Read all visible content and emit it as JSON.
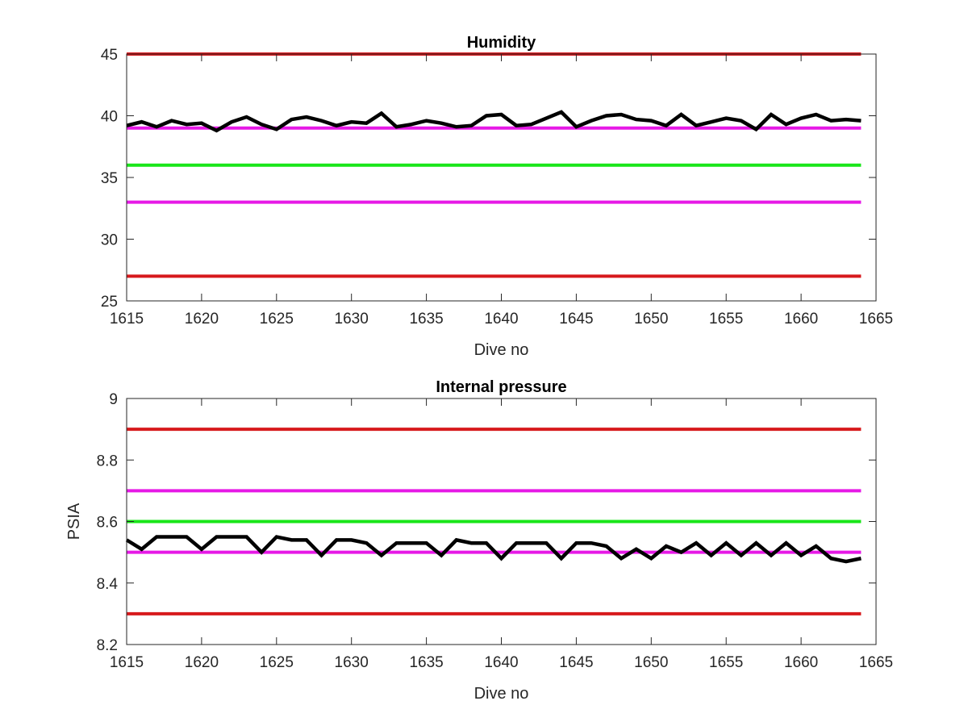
{
  "chart_data": [
    {
      "type": "line",
      "title": "Humidity",
      "xlabel": "Dive no",
      "ylabel": "",
      "xlim": [
        1615,
        1665
      ],
      "ylim": [
        25,
        45
      ],
      "xticks": [
        1615,
        1620,
        1625,
        1630,
        1635,
        1640,
        1645,
        1650,
        1655,
        1660,
        1665
      ],
      "yticks": [
        25,
        30,
        35,
        40,
        45
      ],
      "grid": false,
      "reference_lines": [
        {
          "y": 45,
          "color": "#d7191c"
        },
        {
          "y": 39,
          "color": "#e619e6"
        },
        {
          "y": 36,
          "color": "#19e619"
        },
        {
          "y": 33,
          "color": "#e619e6"
        },
        {
          "y": 27,
          "color": "#d7191c"
        }
      ],
      "series": [
        {
          "color": "#000000",
          "x": [
            1615,
            1616,
            1617,
            1618,
            1619,
            1620,
            1621,
            1622,
            1623,
            1624,
            1625,
            1626,
            1627,
            1628,
            1629,
            1630,
            1631,
            1632,
            1633,
            1634,
            1635,
            1636,
            1637,
            1638,
            1639,
            1640,
            1641,
            1642,
            1643,
            1644,
            1645,
            1646,
            1647,
            1648,
            1649,
            1650,
            1651,
            1652,
            1653,
            1654,
            1655,
            1656,
            1657,
            1658,
            1659,
            1660,
            1661,
            1662,
            1663,
            1664
          ],
          "y": [
            39.2,
            39.5,
            39.1,
            39.6,
            39.3,
            39.4,
            38.8,
            39.5,
            39.9,
            39.3,
            38.9,
            39.7,
            39.9,
            39.6,
            39.2,
            39.5,
            39.4,
            40.2,
            39.1,
            39.3,
            39.6,
            39.4,
            39.1,
            39.2,
            40.0,
            40.1,
            39.2,
            39.3,
            39.8,
            40.3,
            39.1,
            39.6,
            40.0,
            40.1,
            39.7,
            39.6,
            39.2,
            40.1,
            39.2,
            39.5,
            39.8,
            39.6,
            38.9,
            40.1,
            39.3,
            39.8,
            40.1,
            39.6,
            39.7,
            39.6
          ]
        }
      ]
    },
    {
      "type": "line",
      "title": "Internal pressure",
      "xlabel": "Dive no",
      "ylabel": "PSIA",
      "xlim": [
        1615,
        1665
      ],
      "ylim": [
        8.2,
        9.0
      ],
      "xticks": [
        1615,
        1620,
        1625,
        1630,
        1635,
        1640,
        1645,
        1650,
        1655,
        1660,
        1665
      ],
      "yticks": [
        8.2,
        8.4,
        8.6,
        8.8,
        9
      ],
      "ytick_labels": [
        "8.2",
        "8.4",
        "8.6",
        "8.8",
        "9"
      ],
      "grid": false,
      "reference_lines": [
        {
          "y": 8.9,
          "color": "#d7191c"
        },
        {
          "y": 8.7,
          "color": "#e619e6"
        },
        {
          "y": 8.6,
          "color": "#19e619"
        },
        {
          "y": 8.5,
          "color": "#e619e6"
        },
        {
          "y": 8.3,
          "color": "#d7191c"
        }
      ],
      "series": [
        {
          "color": "#000000",
          "x": [
            1615,
            1616,
            1617,
            1618,
            1619,
            1620,
            1621,
            1622,
            1623,
            1624,
            1625,
            1626,
            1627,
            1628,
            1629,
            1630,
            1631,
            1632,
            1633,
            1634,
            1635,
            1636,
            1637,
            1638,
            1639,
            1640,
            1641,
            1642,
            1643,
            1644,
            1645,
            1646,
            1647,
            1648,
            1649,
            1650,
            1651,
            1652,
            1653,
            1654,
            1655,
            1656,
            1657,
            1658,
            1659,
            1660,
            1661,
            1662,
            1663,
            1664
          ],
          "y": [
            8.54,
            8.51,
            8.55,
            8.55,
            8.55,
            8.51,
            8.55,
            8.55,
            8.55,
            8.5,
            8.55,
            8.54,
            8.54,
            8.49,
            8.54,
            8.54,
            8.53,
            8.49,
            8.53,
            8.53,
            8.53,
            8.49,
            8.54,
            8.53,
            8.53,
            8.48,
            8.53,
            8.53,
            8.53,
            8.48,
            8.53,
            8.53,
            8.52,
            8.48,
            8.51,
            8.48,
            8.52,
            8.5,
            8.53,
            8.49,
            8.53,
            8.49,
            8.53,
            8.49,
            8.53,
            8.49,
            8.52,
            8.48,
            8.47,
            8.48
          ]
        }
      ]
    }
  ]
}
